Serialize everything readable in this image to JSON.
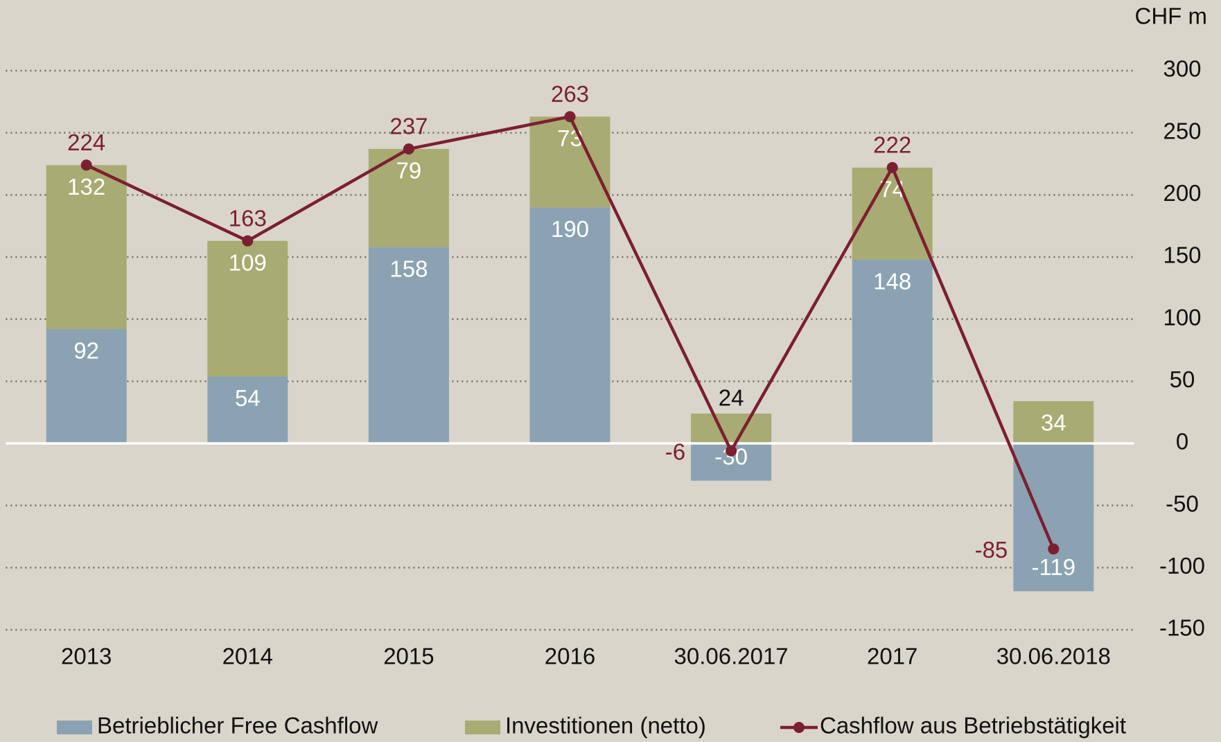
{
  "chart_data": {
    "type": "bar",
    "stacked": true,
    "y_axis_label": "CHF m",
    "categories": [
      "2013",
      "2014",
      "2015",
      "2016",
      "30.06.2017",
      "2017",
      "30.06.2018"
    ],
    "series": [
      {
        "name": "Betrieblicher Free Cashflow",
        "color": "#8ba2b2",
        "values": [
          92,
          54,
          158,
          190,
          -30,
          148,
          -119
        ]
      },
      {
        "name": "Investitionen (netto)",
        "color": "#a8ab72",
        "values": [
          132,
          109,
          79,
          73,
          24,
          74,
          34
        ]
      },
      {
        "name": "Cashflow aus Betriebstätigkeit",
        "color": "#7c1f30",
        "type": "line",
        "values": [
          224,
          163,
          237,
          263,
          -6,
          222,
          -85
        ]
      }
    ],
    "ylim": [
      -150,
      300
    ],
    "yticks": [
      -150,
      -100,
      -50,
      0,
      50,
      100,
      150,
      200,
      250,
      300
    ],
    "grid": true,
    "legend": "bottom"
  }
}
